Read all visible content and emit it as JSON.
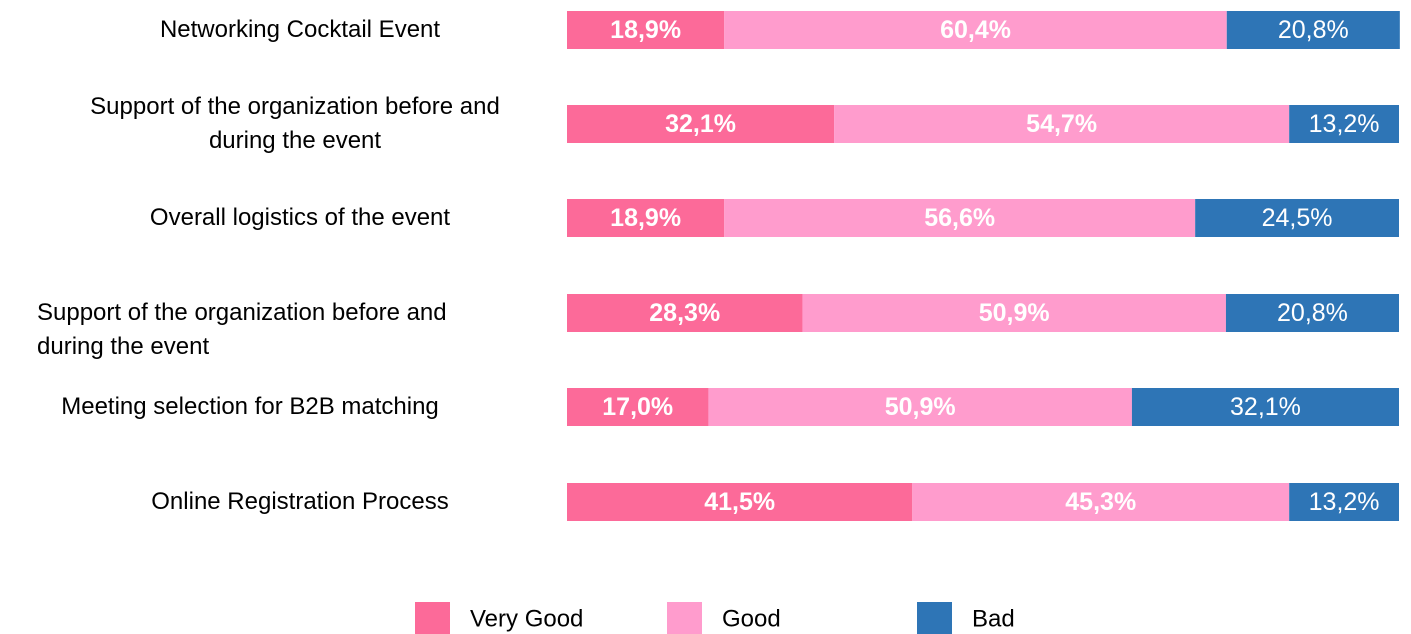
{
  "chart_data": {
    "type": "stacked-bar-horizontal",
    "categories": [
      "Networking Cocktail Event",
      "Support of the organization before and during the event",
      "Overall logistics of the event",
      "Support of the organization before and during the event",
      "Meeting selection for B2B matching",
      "Online Registration Process"
    ],
    "series": [
      {
        "name": "Very Good",
        "color": "#fc6a99",
        "values": [
          18.9,
          32.1,
          18.9,
          28.3,
          17.0,
          41.5
        ],
        "value_labels": [
          "18,9%",
          "32,1%",
          "18,9%",
          "28,3%",
          "17,0%",
          "41,5%"
        ]
      },
      {
        "name": "Good",
        "color": "#ff9ccd",
        "values": [
          60.4,
          54.7,
          56.6,
          50.9,
          50.9,
          45.3
        ],
        "value_labels": [
          "60,4%",
          "54,7%",
          "56,6%",
          "50,9%",
          "50,9%",
          "45,3%"
        ]
      },
      {
        "name": "Bad",
        "color": "#2e75b6",
        "values": [
          20.8,
          13.2,
          24.5,
          20.8,
          32.1,
          13.2
        ],
        "value_labels": [
          "20,8%",
          "13,2%",
          "24,5%",
          "20,8%",
          "32,1%",
          "13,2%"
        ]
      }
    ],
    "xlim": [
      0,
      100
    ]
  }
}
